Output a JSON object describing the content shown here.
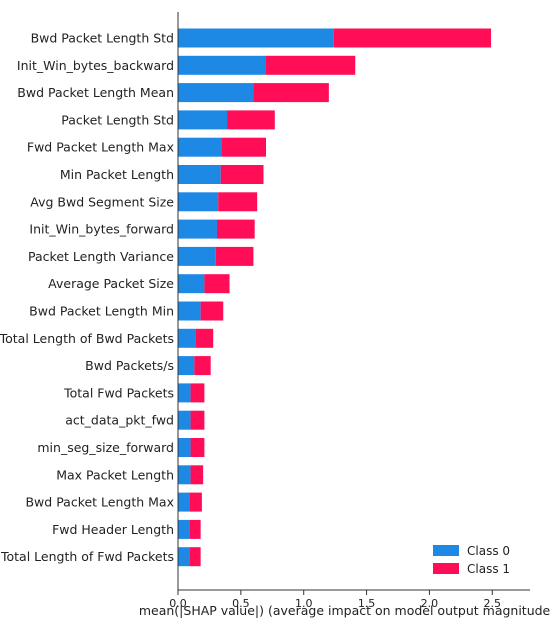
{
  "chart_data": {
    "type": "bar",
    "orientation": "horizontal",
    "stacked": true,
    "title": "",
    "xlabel": "mean(|SHAP value|) (average impact on model output magnitude)",
    "ylabel": "",
    "xlim": [
      0,
      2.8
    ],
    "xticks": [
      "0.0",
      "0.5",
      "1.0",
      "1.5",
      "2.0",
      "2.5"
    ],
    "grid": false,
    "legend_position": "bottom-right",
    "categories": [
      "Bwd Packet Length Std",
      "Init_Win_bytes_backward",
      "Bwd Packet Length Mean",
      "Packet Length Std",
      "Fwd Packet Length Max",
      "Min Packet Length",
      "Avg Bwd Segment Size",
      "Init_Win_bytes_forward",
      "Packet Length Variance",
      "Average Packet Size",
      "Bwd Packet Length Min",
      "Total Length of Bwd Packets",
      "Bwd Packets/s",
      "Total Fwd Packets",
      "act_data_pkt_fwd",
      "min_seg_size_forward",
      "Max Packet Length",
      "Bwd Packet Length Max",
      "Fwd Header Length",
      "Total Length of Fwd Packets"
    ],
    "series": [
      {
        "name": "Class 0",
        "color": "#1e88e5",
        "values": [
          1.24,
          0.7,
          0.6,
          0.39,
          0.35,
          0.34,
          0.32,
          0.31,
          0.3,
          0.21,
          0.18,
          0.14,
          0.13,
          0.1,
          0.1,
          0.1,
          0.1,
          0.09,
          0.09,
          0.09
        ]
      },
      {
        "name": "Class 1",
        "color": "#ff0d57",
        "values": [
          1.25,
          0.71,
          0.6,
          0.38,
          0.35,
          0.34,
          0.31,
          0.3,
          0.3,
          0.2,
          0.18,
          0.14,
          0.13,
          0.11,
          0.11,
          0.11,
          0.1,
          0.1,
          0.09,
          0.09
        ]
      }
    ]
  }
}
